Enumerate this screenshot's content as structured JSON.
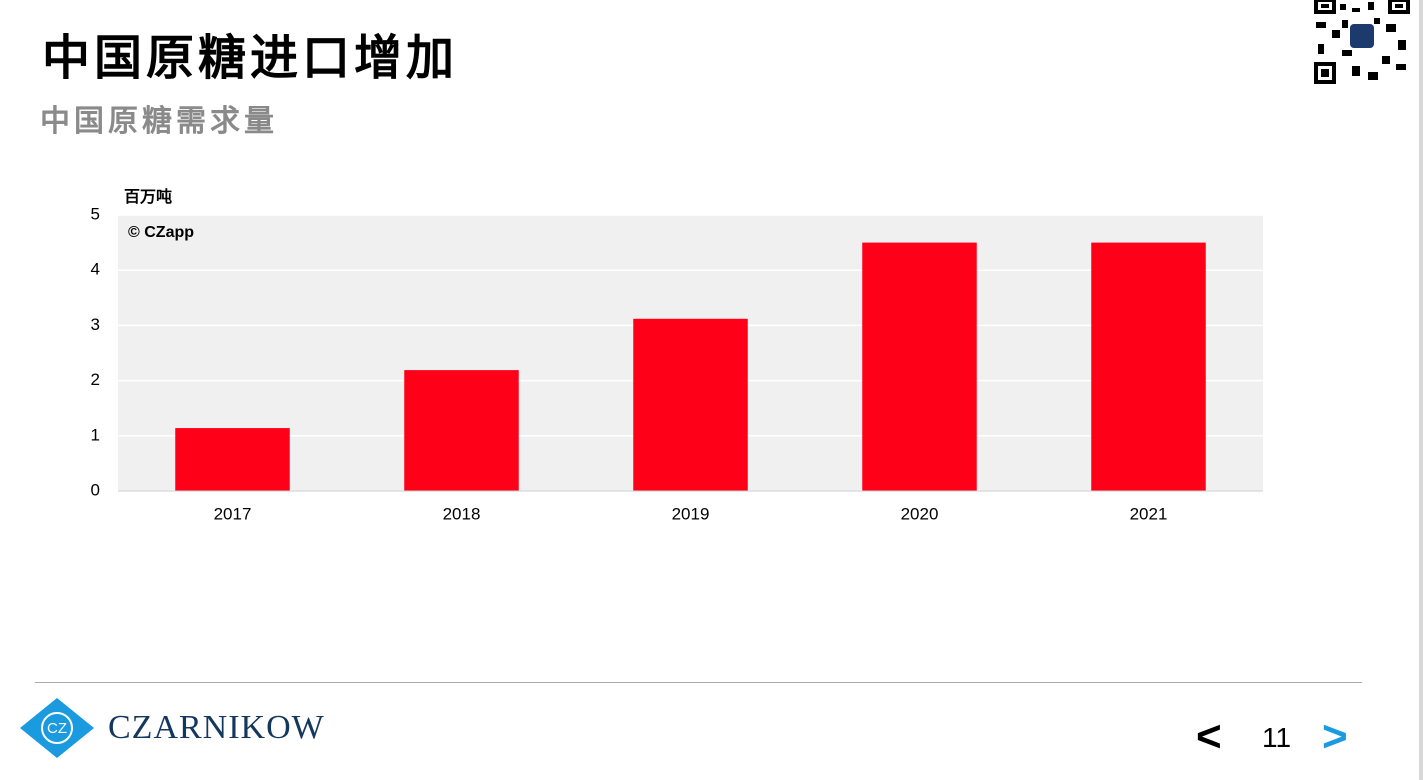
{
  "title": "中国原糖进口增加",
  "subtitle": "中国原糖需求量",
  "logo": {
    "mark": "CZ",
    "text": "CZARNIKOW"
  },
  "navigation": {
    "previous": "<",
    "page": "11",
    "next": ">"
  },
  "chart_data": {
    "type": "bar",
    "unit_label": "百万吨",
    "watermark": "© CZapp",
    "categories": [
      "2017",
      "2018",
      "2019",
      "2020",
      "2021"
    ],
    "values": [
      1.14,
      2.19,
      3.12,
      4.5,
      4.5
    ],
    "color": "#ff0019",
    "ylim": [
      0,
      5
    ],
    "yticks": [
      0,
      1,
      2,
      3,
      4,
      5
    ],
    "grid": true,
    "plot_background": "#f0f0f0"
  }
}
